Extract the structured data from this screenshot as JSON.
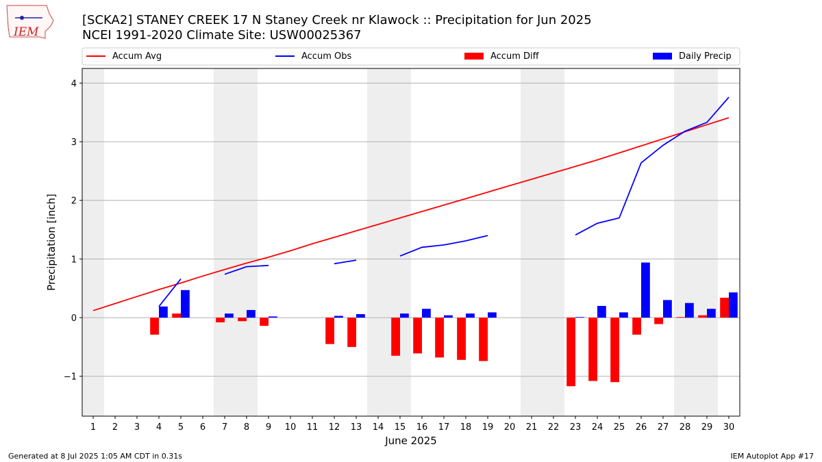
{
  "header": {
    "title_line1": "[SCKA2] STANEY CREEK 17 N Staney Creek nr Klawock :: Precipitation for Jun 2025",
    "title_line2": "NCEI 1991-2020 Climate Site: USW00025367",
    "logo_text": "IEM"
  },
  "footer": {
    "generated": "Generated at 8 Jul 2025 1:05 AM CDT in 0.31s",
    "app": "IEM Autoplot App #17"
  },
  "colors": {
    "accum_avg": "#ff0000",
    "accum_obs": "#0000ff",
    "accum_diff": "#ff0000",
    "daily_precip": "#0000ff",
    "weekend_band": "#eeeeee",
    "grid": "#b0b0b0"
  },
  "chart_data": {
    "type": "bar",
    "title": "[SCKA2] STANEY CREEK 17 N Staney Creek nr Klawock :: Precipitation for Jun 2025",
    "xlabel": "June 2025",
    "ylabel": "Precipitation [inch]",
    "ylim": [
      -1.68,
      4.25
    ],
    "xlim": [
      0.5,
      30.5
    ],
    "yticks": [
      4,
      3,
      2,
      1,
      0,
      -1
    ],
    "ytick_labels": [
      "4",
      "3",
      "2",
      "1",
      "0",
      "−1"
    ],
    "categories": [
      "1",
      "2",
      "3",
      "4",
      "5",
      "6",
      "7",
      "8",
      "9",
      "10",
      "11",
      "12",
      "13",
      "14",
      "15",
      "16",
      "17",
      "18",
      "19",
      "20",
      "21",
      "22",
      "23",
      "24",
      "25",
      "26",
      "27",
      "28",
      "29",
      "30"
    ],
    "grid": "horizontal",
    "legend_position": "top",
    "weekend_bands": [
      [
        0.5,
        1.5
      ],
      [
        6.5,
        8.5
      ],
      [
        13.5,
        15.5
      ],
      [
        20.5,
        22.5
      ],
      [
        27.5,
        29.5
      ]
    ],
    "series": [
      {
        "name": "Accum Avg",
        "kind": "line",
        "values": [
          0.12,
          0.24,
          0.36,
          0.48,
          0.59,
          0.71,
          0.82,
          0.93,
          1.03,
          1.14,
          1.26,
          1.37,
          1.48,
          1.59,
          1.7,
          1.81,
          1.92,
          2.03,
          2.14,
          2.25,
          2.36,
          2.47,
          2.58,
          2.69,
          2.81,
          2.93,
          3.05,
          3.17,
          3.29,
          3.41
        ]
      },
      {
        "name": "Accum Obs",
        "kind": "line",
        "values": [
          null,
          null,
          null,
          0.19,
          0.66,
          null,
          0.74,
          0.87,
          0.89,
          null,
          null,
          0.92,
          0.98,
          null,
          1.05,
          1.2,
          1.24,
          1.31,
          1.4,
          null,
          null,
          null,
          1.41,
          1.61,
          1.7,
          2.64,
          2.94,
          3.18,
          3.33,
          3.76
        ]
      },
      {
        "name": "Accum Diff",
        "kind": "bar",
        "values": [
          null,
          null,
          null,
          -0.29,
          0.07,
          null,
          -0.08,
          -0.06,
          -0.14,
          null,
          null,
          -0.45,
          -0.5,
          null,
          -0.65,
          -0.61,
          -0.68,
          -0.72,
          -0.74,
          null,
          null,
          null,
          -1.17,
          -1.08,
          -1.1,
          -0.29,
          -0.11,
          0.01,
          0.04,
          0.34
        ]
      },
      {
        "name": "Daily Precip",
        "kind": "bar",
        "values": [
          null,
          null,
          null,
          0.19,
          0.47,
          null,
          0.07,
          0.13,
          0.02,
          null,
          null,
          0.03,
          0.06,
          null,
          0.07,
          0.15,
          0.04,
          0.07,
          0.09,
          null,
          null,
          null,
          0.01,
          0.2,
          0.09,
          0.94,
          0.3,
          0.25,
          0.15,
          0.43
        ]
      }
    ]
  }
}
